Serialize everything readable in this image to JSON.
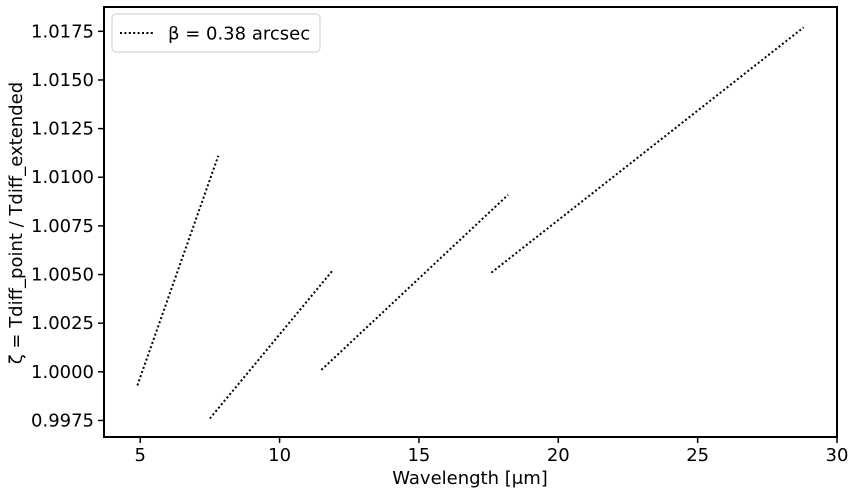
{
  "chart_data": {
    "type": "line",
    "xlabel": "Wavelength [μm]",
    "ylabel": "ζ = Tdiff_point / Tdiff_extended",
    "xlim": [
      3.7,
      30.0
    ],
    "ylim": [
      0.99665,
      1.01875
    ],
    "xticks": [
      5,
      10,
      15,
      20,
      25,
      30
    ],
    "yticks": [
      0.9975,
      1.0,
      1.0025,
      1.005,
      1.0075,
      1.01,
      1.0125,
      1.015,
      1.0175
    ],
    "ytick_labels": [
      "0.9975",
      "1.0000",
      "1.0025",
      "1.0050",
      "1.0075",
      "1.0100",
      "1.0125",
      "1.0150",
      "1.0175"
    ],
    "grid": false,
    "legend_position": "top-left",
    "series": [
      {
        "name": "β = 0.38 arcsec",
        "style": "dotted",
        "color": "#000000",
        "segments": [
          {
            "x": [
              4.9,
              7.8
            ],
            "y": [
              0.9993,
              1.0111
            ]
          },
          {
            "x": [
              7.5,
              11.9
            ],
            "y": [
              0.9976,
              1.0052
            ]
          },
          {
            "x": [
              11.5,
              18.2
            ],
            "y": [
              1.0001,
              1.0091
            ]
          },
          {
            "x": [
              17.6,
              28.8
            ],
            "y": [
              1.0051,
              1.0177
            ]
          }
        ]
      }
    ]
  }
}
